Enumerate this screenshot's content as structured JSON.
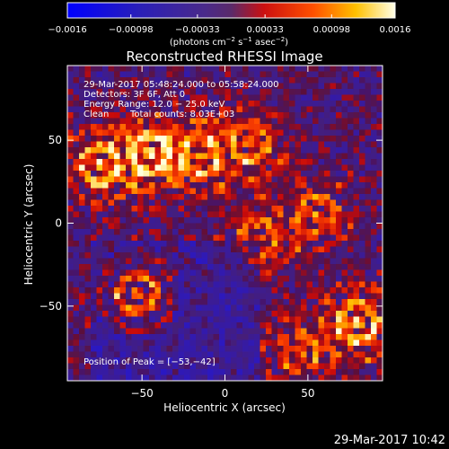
{
  "chart_data": {
    "type": "heatmap",
    "title": "Reconstructed RHESSI Image",
    "xlabel": "Heliocentric X (arcsec)",
    "ylabel": "Heliocentric Y (arcsec)",
    "xlim": [
      -95,
      95
    ],
    "ylim": [
      -95,
      95
    ],
    "x_ticks": [
      -50,
      0,
      50
    ],
    "x_tick_labels": [
      "−50",
      "0",
      "50"
    ],
    "y_ticks": [
      -50,
      0,
      50
    ],
    "y_tick_labels": [
      "−50",
      "0",
      "50"
    ],
    "colorbar": {
      "range": [
        -0.0016,
        0.0016
      ],
      "tick_values": [
        -0.0016,
        -0.00098,
        -0.00033,
        0.00033,
        0.00098,
        0.0016
      ],
      "tick_labels": [
        "−0.0016",
        "−0.00098",
        "−0.00033",
        "0.00033",
        "0.00098",
        "0.0016"
      ],
      "units_parts": [
        "(photons cm",
        "−2",
        " s",
        "−1",
        " asec",
        "−2",
        ")"
      ],
      "colors": [
        "#0000ff",
        "#3a1a9a",
        "#5a2c92",
        "#ff2000",
        "#ffcc00",
        "#ffffe0"
      ]
    },
    "annotations": {
      "time_range": "29-Mar-2017 05:48:24.000 to 05:58:24.000",
      "detectors": "Detectors: 3F 6F, Att 0",
      "energy_range": "Energy Range: 12.0 − 25.0 keV",
      "clean_label": "Clean",
      "total_counts": "Total counts: 8.03E+03",
      "peak_position": "Position of Peak = [−53,−42]"
    },
    "peak": {
      "x": -53,
      "y": -42
    },
    "sources": [
      {
        "x": -53,
        "y": -42,
        "amp": 1.0
      },
      {
        "x": -75,
        "y": 35,
        "amp": 0.8
      },
      {
        "x": -45,
        "y": 42,
        "amp": 0.85
      },
      {
        "x": -15,
        "y": 40,
        "amp": 0.75
      },
      {
        "x": 15,
        "y": 48,
        "amp": 0.65
      },
      {
        "x": 20,
        "y": -10,
        "amp": 0.6
      },
      {
        "x": 55,
        "y": 5,
        "amp": 0.6
      },
      {
        "x": 80,
        "y": -60,
        "amp": 0.85
      },
      {
        "x": 45,
        "y": -78,
        "amp": 0.55
      }
    ],
    "grid": false
  },
  "footer": {
    "timestamp": "29-Mar-2017 10:42"
  }
}
